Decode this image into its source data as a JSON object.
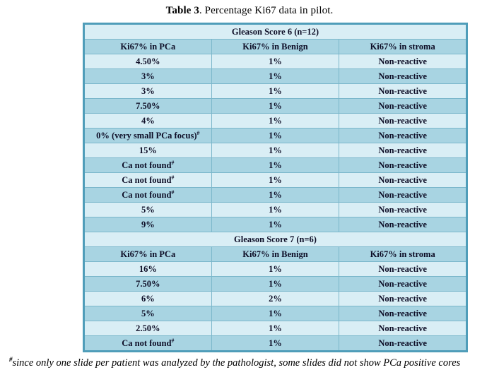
{
  "title": {
    "bold": "Table 3",
    "rest": ". Percentage Ki67 data in pilot."
  },
  "table": {
    "sections": [
      {
        "header": "Gleason Score 6 (n=12)",
        "columns": [
          "Ki67% in PCa",
          "Ki67% in Benign",
          "Ki67% in stroma"
        ],
        "rows": [
          {
            "pca": "4.50%",
            "pca_sup": "",
            "benign": "1%",
            "stroma": "Non-reactive"
          },
          {
            "pca": "3%",
            "pca_sup": "",
            "benign": "1%",
            "stroma": "Non-reactive"
          },
          {
            "pca": "3%",
            "pca_sup": "",
            "benign": "1%",
            "stroma": "Non-reactive"
          },
          {
            "pca": "7.50%",
            "pca_sup": "",
            "benign": "1%",
            "stroma": "Non-reactive"
          },
          {
            "pca": "4%",
            "pca_sup": "",
            "benign": "1%",
            "stroma": "Non-reactive"
          },
          {
            "pca": "0% (very small PCa focus)",
            "pca_sup": "#",
            "benign": "1%",
            "stroma": "Non-reactive"
          },
          {
            "pca": "15%",
            "pca_sup": "",
            "benign": "1%",
            "stroma": "Non-reactive"
          },
          {
            "pca": "Ca not found",
            "pca_sup": "#",
            "benign": "1%",
            "stroma": "Non-reactive"
          },
          {
            "pca": "Ca not found",
            "pca_sup": "#",
            "benign": "1%",
            "stroma": "Non-reactive"
          },
          {
            "pca": "Ca not found",
            "pca_sup": "#",
            "benign": "1%",
            "stroma": "Non-reactive"
          },
          {
            "pca": "5%",
            "pca_sup": "",
            "benign": "1%",
            "stroma": "Non-reactive"
          },
          {
            "pca": "9%",
            "pca_sup": "",
            "benign": "1%",
            "stroma": "Non-reactive"
          }
        ]
      },
      {
        "header": "Gleason Score 7 (n=6)",
        "columns": [
          "Ki67% in PCa",
          "Ki67% in Benign",
          "Ki67% in stroma"
        ],
        "rows": [
          {
            "pca": "16%",
            "pca_sup": "",
            "benign": "1%",
            "stroma": "Non-reactive"
          },
          {
            "pca": "7.50%",
            "pca_sup": "",
            "benign": "1%",
            "stroma": "Non-reactive"
          },
          {
            "pca": "6%",
            "pca_sup": "",
            "benign": "2%",
            "stroma": "Non-reactive"
          },
          {
            "pca": "5%",
            "pca_sup": "",
            "benign": "1%",
            "stroma": "Non-reactive"
          },
          {
            "pca": "2.50%",
            "pca_sup": "",
            "benign": "1%",
            "stroma": "Non-reactive"
          },
          {
            "pca": "Ca not found",
            "pca_sup": "#",
            "benign": "1%",
            "stroma": "Non-reactive"
          }
        ]
      }
    ]
  },
  "footnote": {
    "marker": "#",
    "text": "since only one slide per patient was analyzed by the pathologist, some slides did not show PCa positive cores"
  },
  "colors": {
    "row_light": "#d9eef5",
    "row_dark": "#a8d4e2",
    "border_inner": "#7bb7cb",
    "border_outer": "#4f9db9",
    "cell_text": "#0d0d26"
  }
}
